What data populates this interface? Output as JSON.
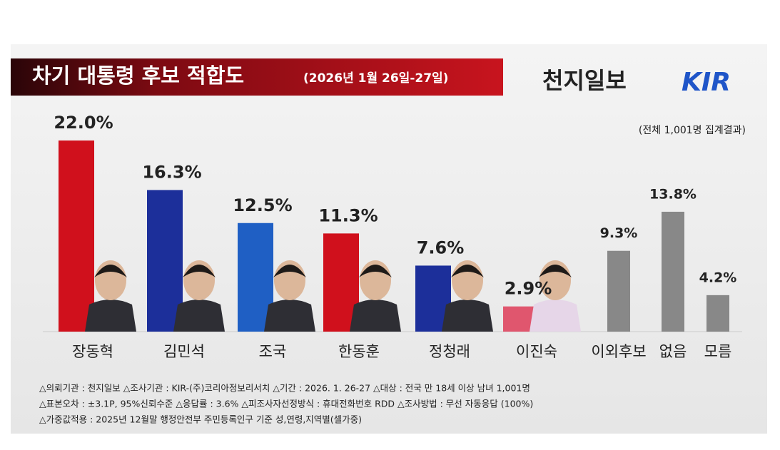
{
  "chart_data": {
    "type": "bar",
    "title": "차기 대통령 후보 적합도",
    "subtitle": "(2026년 1월 26일-27일)",
    "brand": "천지일보",
    "logo": "KIR",
    "note": "(전체 1,001명 집계결과)",
    "categories": [
      "장동혁",
      "김민석",
      "조국",
      "한동훈",
      "정청래",
      "이진숙",
      "이외후보",
      "없음",
      "모름"
    ],
    "values": [
      22.0,
      16.3,
      12.5,
      11.3,
      7.6,
      2.9,
      9.3,
      13.8,
      4.2
    ],
    "value_labels": [
      "22.0%",
      "16.3%",
      "12.5%",
      "11.3%",
      "7.6%",
      "2.9%",
      "9.3%",
      "13.8%",
      "4.2%"
    ],
    "colors": [
      "#d0101c",
      "#1c2f9a",
      "#1f5fc4",
      "#d0101c",
      "#1c2f9a",
      "#e0566e",
      "#888888",
      "#888888",
      "#888888"
    ],
    "footnotes": [
      "△의뢰기관 : 천지일보    △조사기관 : KIR-(주)코리아정보리서치    △기간 : 2026. 1. 26-27   △대상 : 전국 만 18세 이상 남녀 1,001명",
      "△표본오차 : ±3.1P, 95%신뢰수준   △응답률 : 3.6%   △피조사자선정방식 : 휴대전화번호 RDD   △조사방법 : 무선 자동응답 (100%)",
      "△가중값적용 : 2025년 12월말 행정안전부 주민등록인구 기준 성,연령,지역별(셀가중)"
    ]
  }
}
